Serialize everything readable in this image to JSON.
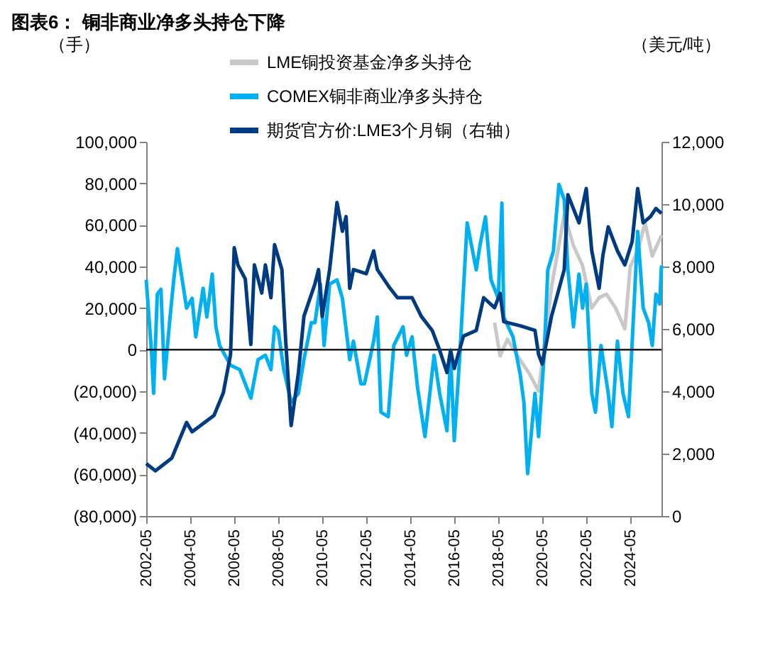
{
  "chart_data": {
    "type": "line",
    "title": "图表6：  铜非商业净多头持仓下降",
    "ylabel": "（手）",
    "y2label": "（美元/吨）",
    "xlim": [
      "2002-05",
      "2025-10"
    ],
    "xticks": [
      "2002-05",
      "2004-05",
      "2006-05",
      "2008-05",
      "2010-05",
      "2012-05",
      "2014-05",
      "2016-05",
      "2018-05",
      "2020-05",
      "2022-05",
      "2024-05"
    ],
    "ylim": [
      -80000,
      100000
    ],
    "yticks": [
      {
        "value": -80000,
        "label": "(80,000)"
      },
      {
        "value": -60000,
        "label": "(60,000)"
      },
      {
        "value": -40000,
        "label": "(40,000)"
      },
      {
        "value": -20000,
        "label": "(20,000)"
      },
      {
        "value": 0,
        "label": "0"
      },
      {
        "value": 20000,
        "label": "20,000"
      },
      {
        "value": 40000,
        "label": "40,000"
      },
      {
        "value": 60000,
        "label": "60,000"
      },
      {
        "value": 80000,
        "label": "80,000"
      },
      {
        "value": 100000,
        "label": "100,000"
      }
    ],
    "y2lim": [
      0,
      12000
    ],
    "y2ticks": [
      {
        "value": 0,
        "label": "0"
      },
      {
        "value": 2000,
        "label": "2,000"
      },
      {
        "value": 4000,
        "label": "4,000"
      },
      {
        "value": 6000,
        "label": "6,000"
      },
      {
        "value": 8000,
        "label": "8,000"
      },
      {
        "value": 10000,
        "label": "10,000"
      },
      {
        "value": 12000,
        "label": "12,000"
      }
    ],
    "grid": false,
    "legend": "top",
    "marker": "none",
    "line_style": "solid",
    "ref_lines": [
      {
        "axis": "y",
        "value": 0,
        "color": "#000000"
      }
    ],
    "series": [
      {
        "name": "LME铜投资基金净多头持仓",
        "color": "#c8c8c8",
        "type": "line",
        "x": [
          "2018-03",
          "2018-06",
          "2018-10",
          "2019-05",
          "2019-10",
          "2020-03",
          "2020-10",
          "2021-05",
          "2021-10",
          "2022-03",
          "2022-08",
          "2022-12",
          "2023-04",
          "2023-09",
          "2024-02",
          "2024-05",
          "2024-09",
          "2025-01",
          "2025-05",
          "2025-10"
        ],
        "values": [
          13000,
          -3000,
          5000,
          -5000,
          -11600,
          -20000,
          30000,
          65000,
          50000,
          40400,
          20000,
          25000,
          26700,
          20000,
          10000,
          40000,
          47300,
          61000,
          45000,
          55000
        ]
      },
      {
        "name": "COMEX铜非商业净多头持仓",
        "color": "#00b0f0",
        "type": "line",
        "x": [
          "2002-05",
          "2002-08",
          "2002-09",
          "2002-11",
          "2003-01",
          "2003-03",
          "2003-06",
          "2003-08",
          "2003-10",
          "2004-03",
          "2004-06",
          "2004-08",
          "2004-12",
          "2005-02",
          "2005-05",
          "2005-07",
          "2005-09",
          "2006-03",
          "2006-08",
          "2007-02",
          "2007-06",
          "2007-10",
          "2008-01",
          "2008-03",
          "2008-05",
          "2008-08",
          "2008-12",
          "2009-04",
          "2009-07",
          "2009-11",
          "2010-01",
          "2010-04",
          "2010-06",
          "2010-09",
          "2011-01",
          "2011-04",
          "2011-08",
          "2011-10",
          "2012-02",
          "2012-04",
          "2012-09",
          "2012-11",
          "2013-01",
          "2013-05",
          "2013-08",
          "2014-01",
          "2014-03",
          "2014-06",
          "2014-09",
          "2015-01",
          "2015-06",
          "2015-09",
          "2016-01",
          "2016-03",
          "2016-05",
          "2016-08",
          "2016-12",
          "2017-05",
          "2017-07",
          "2017-10",
          "2018-01",
          "2018-05",
          "2018-07",
          "2018-08",
          "2019-01",
          "2019-05",
          "2019-07",
          "2019-09",
          "2020-01",
          "2020-03",
          "2020-06",
          "2020-08",
          "2020-11",
          "2021-02",
          "2021-05",
          "2021-07",
          "2021-10",
          "2022-01",
          "2022-03",
          "2022-05",
          "2022-08",
          "2022-10",
          "2023-01",
          "2023-05",
          "2023-07",
          "2023-10",
          "2024-01",
          "2024-04",
          "2024-08",
          "2024-09",
          "2024-12",
          "2025-03",
          "2025-05",
          "2025-07",
          "2025-09",
          "2025-10"
        ],
        "values": [
          33600,
          -2700,
          -21000,
          26700,
          29000,
          -14000,
          15700,
          33600,
          48600,
          20000,
          24700,
          6200,
          29500,
          15700,
          36300,
          11000,
          2000,
          -7500,
          -9600,
          -23300,
          -4800,
          -2700,
          -9600,
          11000,
          8900,
          -9600,
          -25300,
          -21000,
          -4800,
          13000,
          13000,
          31500,
          2000,
          31500,
          33600,
          24700,
          -4800,
          4100,
          -16400,
          -16400,
          4100,
          15700,
          -30100,
          -32200,
          2000,
          11000,
          -2700,
          6200,
          -18500,
          -41800,
          -2700,
          -21000,
          -39000,
          -2700,
          -43800,
          -2700,
          61000,
          38400,
          50000,
          63900,
          33600,
          24700,
          70500,
          15700,
          6200,
          -12000,
          -25300,
          -59600,
          -21000,
          -41800,
          -2700,
          38400,
          47300,
          79500,
          72000,
          38400,
          11000,
          36300,
          20000,
          31500,
          -21000,
          -30100,
          2000,
          -21000,
          -37000,
          4100,
          -21000,
          -32200,
          38400,
          56900,
          20000,
          13000,
          2000,
          26700,
          22000,
          40500
        ]
      },
      {
        "name": "期货官方价:LME3个月铜（右轴）",
        "color": "#003a80",
        "type": "line",
        "axis": "y2",
        "x": [
          "2002-05",
          "2002-10",
          "2003-07",
          "2004-03",
          "2004-06",
          "2005-06",
          "2005-11",
          "2006-03",
          "2006-05",
          "2006-07",
          "2006-11",
          "2007-02",
          "2007-04",
          "2007-08",
          "2007-10",
          "2008-01",
          "2008-03",
          "2008-07",
          "2008-09",
          "2008-12",
          "2009-04",
          "2009-07",
          "2010-01",
          "2010-03",
          "2010-05",
          "2010-09",
          "2011-01",
          "2011-04",
          "2011-06",
          "2011-08",
          "2011-10",
          "2012-05",
          "2012-09",
          "2012-11",
          "2013-06",
          "2013-10",
          "2014-06",
          "2014-11",
          "2015-05",
          "2015-09",
          "2016-01",
          "2016-03",
          "2016-05",
          "2016-10",
          "2017-05",
          "2017-09",
          "2018-03",
          "2018-06",
          "2018-08",
          "2019-05",
          "2020-01",
          "2020-03",
          "2020-05",
          "2020-10",
          "2021-05",
          "2021-07",
          "2022-01",
          "2022-05",
          "2022-08",
          "2022-12",
          "2023-02",
          "2023-05",
          "2023-10",
          "2024-02",
          "2024-06",
          "2024-09",
          "2024-12",
          "2025-04",
          "2025-07",
          "2025-10"
        ],
        "values": [
          1680,
          1450,
          1860,
          3000,
          2700,
          3230,
          3950,
          5180,
          8600,
          8050,
          7600,
          5500,
          8050,
          7150,
          8050,
          7000,
          8700,
          7900,
          5640,
          2900,
          4600,
          6400,
          7450,
          7900,
          6400,
          7900,
          10050,
          9130,
          9600,
          7300,
          7900,
          7770,
          8500,
          7900,
          7300,
          7000,
          7000,
          6400,
          5950,
          5320,
          4600,
          5320,
          4730,
          5770,
          5950,
          7000,
          6680,
          7140,
          6230,
          6100,
          5950,
          5180,
          4870,
          6400,
          7900,
          10300,
          9400,
          10500,
          8500,
          7300,
          8350,
          9270,
          8500,
          8050,
          8800,
          10500,
          9400,
          9600,
          9860,
          9700
        ]
      }
    ]
  }
}
